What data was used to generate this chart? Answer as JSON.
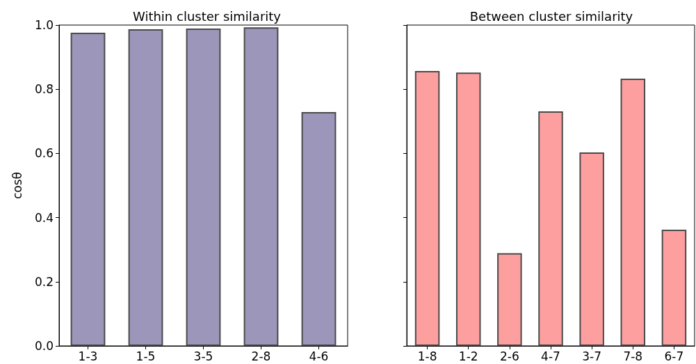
{
  "chart_data": [
    {
      "type": "bar",
      "title": "Within cluster similarity",
      "ylabel": "cosθ",
      "categories": [
        "1-3",
        "1-5",
        "3-5",
        "2-8",
        "4-6"
      ],
      "values": [
        0.976,
        0.987,
        0.989,
        0.993,
        0.729
      ],
      "color": "#9b96ba",
      "ylim": [
        0,
        1
      ],
      "yticks": [
        {
          "value": 0,
          "label": "0.0"
        },
        0.2,
        0.4,
        0.6,
        0.8,
        {
          "value": 1,
          "label": "1.0"
        }
      ],
      "grid": false
    },
    {
      "type": "bar",
      "title": "Between cluster similarity",
      "categories": [
        "1-8",
        "1-2",
        "2-6",
        "4-7",
        "3-7",
        "7-8",
        "6-7"
      ],
      "values": [
        0.857,
        0.852,
        0.289,
        0.731,
        0.603,
        0.833,
        0.362
      ],
      "color": "#fe9f9f",
      "ylim": [
        0,
        1
      ],
      "yticks": [
        0,
        0.2,
        0.4,
        0.6,
        0.8,
        1.0
      ],
      "grid": false,
      "tick_labels": "x"
    }
  ]
}
